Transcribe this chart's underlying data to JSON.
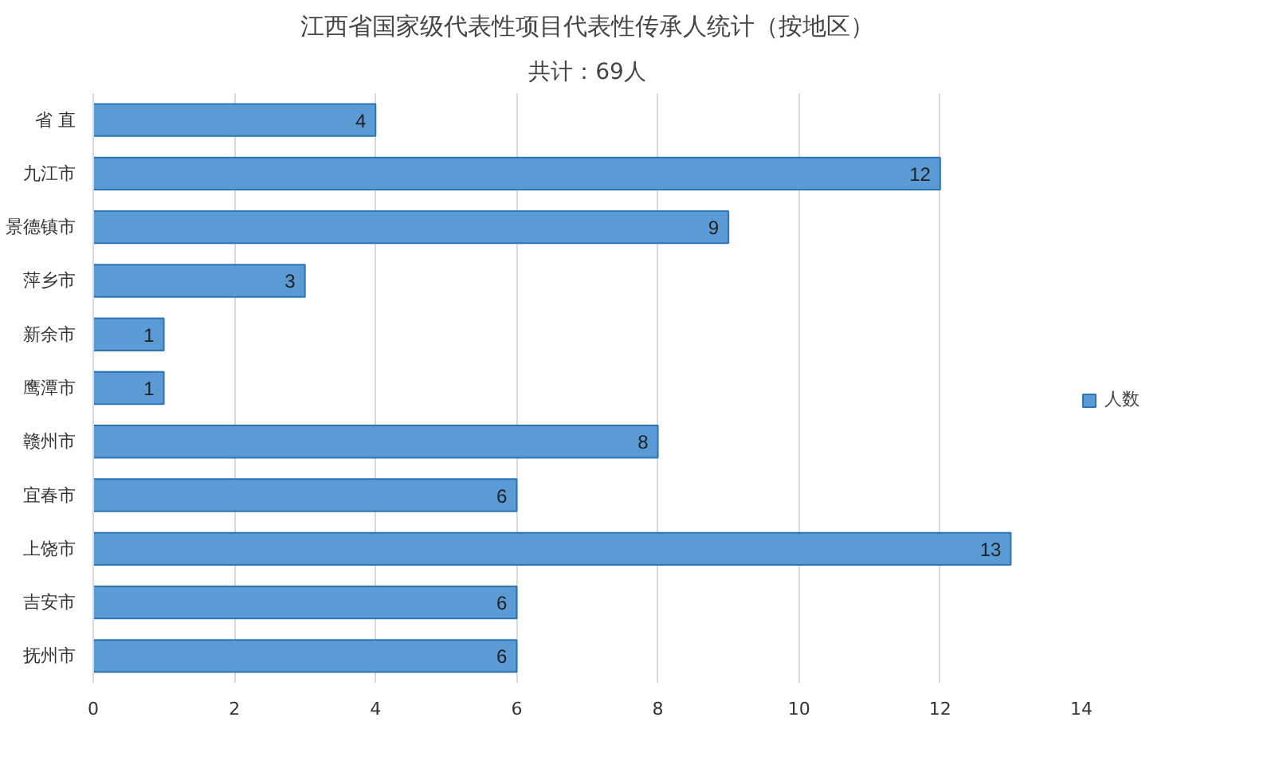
{
  "chart_data": {
    "type": "bar",
    "orientation": "horizontal",
    "title": "江西省国家级代表性项目代表性传承人统计（按地区）",
    "subtitle": "共计：69人",
    "categories": [
      "省 直",
      "九江市",
      "景德镇市",
      "萍乡市",
      "新余市",
      "鹰潭市",
      "赣州市",
      "宜春市",
      "上饶市",
      "吉安市",
      "抚州市"
    ],
    "series": [
      {
        "name": "人数",
        "color": "#5b9bd5",
        "values": [
          4,
          12,
          9,
          3,
          1,
          1,
          8,
          6,
          13,
          6,
          6
        ]
      }
    ],
    "xlim": [
      0,
      14
    ],
    "xticks": [
      0,
      2,
      4,
      6,
      8,
      10,
      12,
      14
    ],
    "grid": "x",
    "legend": "right",
    "data_labels": true
  }
}
